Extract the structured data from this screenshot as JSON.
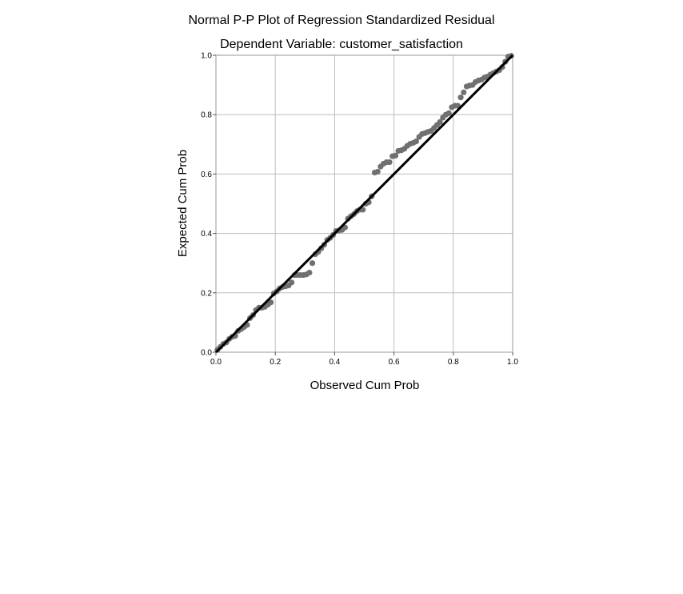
{
  "chart_data": {
    "type": "scatter",
    "title": "Normal P-P Plot of Regression Standardized Residual",
    "subtitle": "Dependent Variable: customer_satisfaction",
    "xlabel": "Observed Cum Prob",
    "ylabel": "Expected Cum Prob",
    "xlim": [
      0.0,
      1.0
    ],
    "ylim": [
      0.0,
      1.0
    ],
    "xticks": [
      "0.0",
      "0.2",
      "0.4",
      "0.6",
      "0.8",
      "1.0"
    ],
    "yticks": [
      "0.0",
      "0.2",
      "0.4",
      "0.6",
      "0.8",
      "1.0"
    ],
    "grid": true,
    "legend": "none",
    "colors": {
      "points": "#707070",
      "reference_line": "#000000",
      "grid": "#bdbdbd",
      "frame": "#999999"
    },
    "reference_line": {
      "x": [
        0.0,
        1.0
      ],
      "y": [
        0.0,
        1.0
      ]
    },
    "points": {
      "x": [
        0.005,
        0.015,
        0.025,
        0.035,
        0.045,
        0.055,
        0.065,
        0.075,
        0.085,
        0.095,
        0.105,
        0.115,
        0.125,
        0.135,
        0.145,
        0.155,
        0.165,
        0.175,
        0.185,
        0.195,
        0.205,
        0.215,
        0.225,
        0.235,
        0.245,
        0.255,
        0.265,
        0.275,
        0.285,
        0.295,
        0.305,
        0.315,
        0.325,
        0.335,
        0.345,
        0.355,
        0.365,
        0.375,
        0.385,
        0.395,
        0.405,
        0.415,
        0.425,
        0.435,
        0.445,
        0.455,
        0.465,
        0.475,
        0.485,
        0.495,
        0.505,
        0.515,
        0.525,
        0.535,
        0.545,
        0.555,
        0.565,
        0.575,
        0.585,
        0.595,
        0.605,
        0.615,
        0.625,
        0.635,
        0.645,
        0.655,
        0.665,
        0.675,
        0.685,
        0.695,
        0.705,
        0.715,
        0.725,
        0.735,
        0.745,
        0.755,
        0.765,
        0.775,
        0.785,
        0.795,
        0.805,
        0.815,
        0.825,
        0.835,
        0.845,
        0.855,
        0.865,
        0.875,
        0.885,
        0.895,
        0.905,
        0.915,
        0.925,
        0.935,
        0.945,
        0.955,
        0.965,
        0.975,
        0.985,
        0.995
      ],
      "y": [
        0.008,
        0.018,
        0.028,
        0.033,
        0.045,
        0.052,
        0.055,
        0.072,
        0.078,
        0.085,
        0.092,
        0.115,
        0.125,
        0.142,
        0.15,
        0.15,
        0.153,
        0.16,
        0.168,
        0.198,
        0.205,
        0.215,
        0.22,
        0.222,
        0.225,
        0.235,
        0.26,
        0.26,
        0.26,
        0.26,
        0.262,
        0.268,
        0.3,
        0.33,
        0.338,
        0.35,
        0.362,
        0.378,
        0.385,
        0.395,
        0.408,
        0.41,
        0.412,
        0.42,
        0.45,
        0.458,
        0.465,
        0.475,
        0.48,
        0.48,
        0.5,
        0.505,
        0.525,
        0.605,
        0.608,
        0.625,
        0.635,
        0.64,
        0.64,
        0.66,
        0.662,
        0.678,
        0.68,
        0.685,
        0.695,
        0.702,
        0.705,
        0.71,
        0.725,
        0.735,
        0.738,
        0.742,
        0.745,
        0.755,
        0.765,
        0.775,
        0.79,
        0.8,
        0.805,
        0.825,
        0.83,
        0.83,
        0.858,
        0.875,
        0.895,
        0.898,
        0.9,
        0.91,
        0.915,
        0.918,
        0.925,
        0.928,
        0.935,
        0.94,
        0.945,
        0.95,
        0.96,
        0.978,
        0.995,
        0.998
      ]
    }
  }
}
